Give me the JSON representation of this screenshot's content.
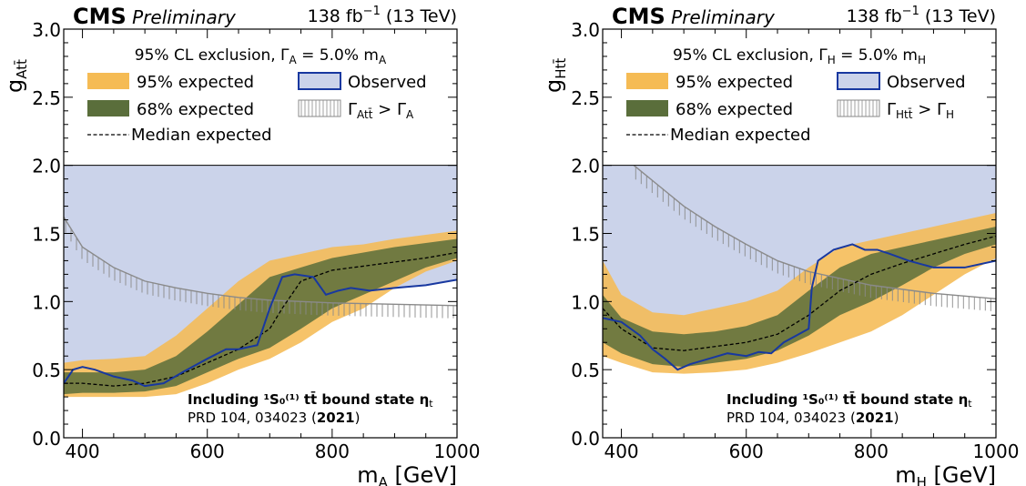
{
  "chart_data": [
    {
      "type": "area",
      "experiment": "CMS",
      "status": "Preliminary",
      "lumi": "138 fb",
      "lumi_exp": "−1",
      "energy": "(13 TeV)",
      "ylabel_main": "g",
      "ylabel_sub": "Att̄",
      "xlabel_main": "m",
      "xlabel_sub": "A",
      "xlabel_unit": "[GeV]",
      "xlim": [
        370,
        1000
      ],
      "ylim": [
        0,
        3.0
      ],
      "xticks": [
        400,
        600,
        800,
        1000
      ],
      "xtick_labels": [
        "400",
        "600",
        "800",
        "1000"
      ],
      "yticks": [
        0,
        0.5,
        1.0,
        1.5,
        2.0,
        2.5,
        3.0
      ],
      "ytick_labels": [
        "0.0",
        "0.5",
        "1.0",
        "1.5",
        "2.0",
        "2.5",
        "3.0"
      ],
      "legend_title": {
        "pre": "95% CL exclusion, Γ",
        "sub1": "A",
        "mid": " =  5.0% m",
        "sub2": "A"
      },
      "legend": {
        "exp95": "95% expected",
        "exp68": "68% expected",
        "median": "Median expected",
        "observed": "Observed",
        "width": {
          "pre": "Γ",
          "sub1": "Att̄",
          "mid": " > Γ",
          "sub2": "A"
        }
      },
      "note_line1": "Including ¹S₀⁽¹⁾ tt̄ bound state η",
      "note_sub": "t",
      "note_line2_pre": "PRD 104, 034023 (",
      "note_line2_year": "2021",
      "note_line2_post": ")",
      "colors": {
        "exp95": "#f5bb54",
        "exp68": "#5a6e3b",
        "observed": "#1838a0",
        "obs_fill": "#cbd3ea",
        "width": "#8a8a8a"
      },
      "series": [
        {
          "name": "95% expected",
          "kind": "band",
          "x": [
            370,
            400,
            450,
            500,
            550,
            600,
            650,
            700,
            750,
            800,
            850,
            900,
            950,
            1000
          ],
          "low": [
            0.3,
            0.3,
            0.3,
            0.3,
            0.32,
            0.4,
            0.5,
            0.58,
            0.7,
            0.85,
            0.95,
            1.1,
            1.22,
            1.3
          ],
          "high": [
            0.55,
            0.57,
            0.58,
            0.6,
            0.75,
            0.95,
            1.15,
            1.3,
            1.35,
            1.4,
            1.42,
            1.46,
            1.49,
            1.52
          ]
        },
        {
          "name": "68% expected",
          "kind": "band",
          "x": [
            370,
            400,
            450,
            500,
            550,
            600,
            650,
            700,
            750,
            800,
            850,
            900,
            950,
            1000
          ],
          "low": [
            0.32,
            0.33,
            0.33,
            0.34,
            0.38,
            0.48,
            0.58,
            0.66,
            0.8,
            0.95,
            1.05,
            1.15,
            1.25,
            1.32
          ],
          "high": [
            0.48,
            0.48,
            0.48,
            0.5,
            0.6,
            0.78,
            0.98,
            1.18,
            1.25,
            1.32,
            1.36,
            1.4,
            1.43,
            1.46
          ]
        },
        {
          "name": "Median expected",
          "kind": "line",
          "x": [
            370,
            400,
            450,
            500,
            550,
            600,
            650,
            700,
            720,
            750,
            800,
            850,
            900,
            950,
            1000
          ],
          "y": [
            0.4,
            0.4,
            0.38,
            0.4,
            0.45,
            0.55,
            0.65,
            0.8,
            0.95,
            1.15,
            1.23,
            1.26,
            1.29,
            1.32,
            1.36
          ]
        },
        {
          "name": "Observed",
          "kind": "line",
          "x": [
            370,
            385,
            400,
            420,
            450,
            480,
            500,
            530,
            560,
            600,
            630,
            650,
            680,
            700,
            720,
            740,
            770,
            790,
            810,
            830,
            860,
            900,
            950,
            1000
          ],
          "y": [
            0.4,
            0.5,
            0.52,
            0.5,
            0.45,
            0.42,
            0.38,
            0.4,
            0.48,
            0.58,
            0.65,
            0.65,
            0.68,
            0.95,
            1.18,
            1.2,
            1.18,
            1.05,
            1.08,
            1.1,
            1.08,
            1.1,
            1.12,
            1.16
          ]
        },
        {
          "name": "width",
          "kind": "curve",
          "x": [
            370,
            400,
            450,
            500,
            550,
            600,
            650,
            700,
            800,
            900,
            1000
          ],
          "y": [
            1.62,
            1.4,
            1.25,
            1.15,
            1.1,
            1.06,
            1.03,
            1.01,
            0.99,
            0.98,
            0.97
          ]
        }
      ]
    },
    {
      "type": "area",
      "experiment": "CMS",
      "status": "Preliminary",
      "lumi": "138 fb",
      "lumi_exp": "−1",
      "energy": "(13 TeV)",
      "ylabel_main": "g",
      "ylabel_sub": "Htt̄",
      "xlabel_main": "m",
      "xlabel_sub": "H",
      "xlabel_unit": "[GeV]",
      "xlim": [
        370,
        1000
      ],
      "ylim": [
        0,
        3.0
      ],
      "xticks": [
        400,
        600,
        800,
        1000
      ],
      "xtick_labels": [
        "400",
        "600",
        "800",
        "1000"
      ],
      "yticks": [
        0,
        0.5,
        1.0,
        1.5,
        2.0,
        2.5,
        3.0
      ],
      "ytick_labels": [
        "0.0",
        "0.5",
        "1.0",
        "1.5",
        "2.0",
        "2.5",
        "3.0"
      ],
      "legend_title": {
        "pre": "95% CL exclusion, Γ",
        "sub1": "H",
        "mid": " =  5.0% m",
        "sub2": "H"
      },
      "legend": {
        "exp95": "95% expected",
        "exp68": "68% expected",
        "median": "Median expected",
        "observed": "Observed",
        "width": {
          "pre": "Γ",
          "sub1": "Htt̄",
          "mid": " > Γ",
          "sub2": "H"
        }
      },
      "note_line1": "Including ¹S₀⁽¹⁾ tt̄ bound state η",
      "note_sub": "t",
      "note_line2_pre": "PRD 104, 034023 (",
      "note_line2_year": "2021",
      "note_line2_post": ")",
      "colors": {
        "exp95": "#f5bb54",
        "exp68": "#5a6e3b",
        "observed": "#1838a0",
        "obs_fill": "#cbd3ea",
        "width": "#8a8a8a"
      },
      "series": [
        {
          "name": "95% expected",
          "kind": "band",
          "x": [
            370,
            400,
            450,
            500,
            550,
            600,
            650,
            700,
            750,
            800,
            850,
            900,
            950,
            1000
          ],
          "low": [
            0.6,
            0.55,
            0.48,
            0.47,
            0.48,
            0.5,
            0.55,
            0.62,
            0.7,
            0.78,
            0.9,
            1.05,
            1.2,
            1.32
          ],
          "high": [
            1.3,
            1.05,
            0.92,
            0.9,
            0.95,
            1.0,
            1.08,
            1.25,
            1.4,
            1.45,
            1.5,
            1.55,
            1.6,
            1.65
          ]
        },
        {
          "name": "68% expected",
          "kind": "band",
          "x": [
            370,
            400,
            450,
            500,
            550,
            600,
            650,
            700,
            750,
            800,
            850,
            900,
            950,
            1000
          ],
          "low": [
            0.7,
            0.62,
            0.54,
            0.52,
            0.55,
            0.58,
            0.64,
            0.75,
            0.9,
            1.0,
            1.12,
            1.25,
            1.35,
            1.42
          ],
          "high": [
            1.05,
            0.88,
            0.78,
            0.76,
            0.78,
            0.82,
            0.9,
            1.08,
            1.25,
            1.35,
            1.4,
            1.45,
            1.5,
            1.55
          ]
        },
        {
          "name": "Median expected",
          "kind": "line",
          "x": [
            370,
            400,
            450,
            500,
            550,
            600,
            650,
            700,
            750,
            800,
            850,
            900,
            950,
            1000
          ],
          "y": [
            0.95,
            0.8,
            0.66,
            0.64,
            0.67,
            0.7,
            0.76,
            0.9,
            1.08,
            1.2,
            1.28,
            1.35,
            1.42,
            1.48
          ]
        },
        {
          "name": "Observed",
          "kind": "line",
          "x": [
            370,
            400,
            430,
            450,
            470,
            490,
            510,
            540,
            570,
            600,
            620,
            640,
            660,
            680,
            700,
            705,
            715,
            740,
            770,
            790,
            810,
            830,
            860,
            900,
            950,
            1000
          ],
          "y": [
            0.88,
            0.85,
            0.75,
            0.65,
            0.58,
            0.5,
            0.54,
            0.58,
            0.62,
            0.6,
            0.63,
            0.62,
            0.7,
            0.75,
            0.8,
            1.1,
            1.3,
            1.38,
            1.42,
            1.38,
            1.38,
            1.35,
            1.3,
            1.25,
            1.25,
            1.3
          ]
        },
        {
          "name": "width",
          "kind": "curve",
          "x": [
            420,
            460,
            500,
            550,
            600,
            650,
            700,
            800,
            900,
            1000
          ],
          "y": [
            2.0,
            1.85,
            1.7,
            1.55,
            1.42,
            1.3,
            1.22,
            1.12,
            1.06,
            1.02
          ]
        }
      ]
    }
  ]
}
